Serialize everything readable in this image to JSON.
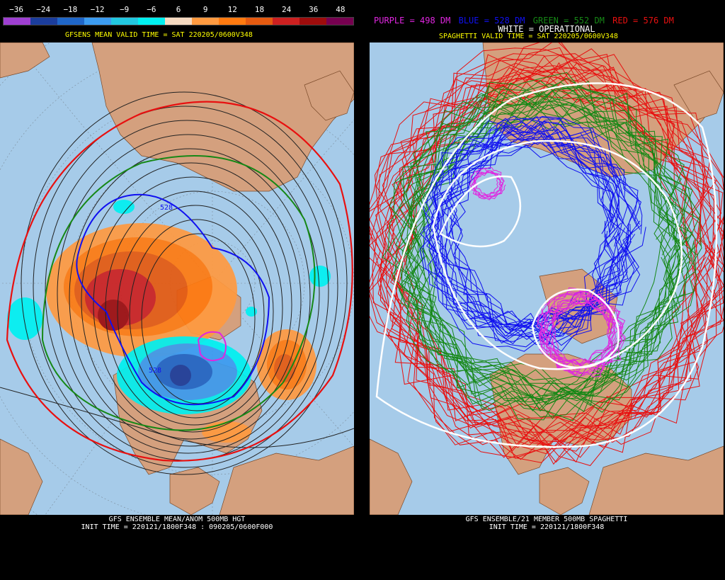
{
  "left": {
    "scale_labels": [
      "−36",
      "−24",
      "−18",
      "−12",
      "−9",
      "−6",
      "6",
      "9",
      "12",
      "18",
      "24",
      "36",
      "48"
    ],
    "scale_colors": [
      "#9e3fd1",
      "#1b3d9c",
      "#1f66c8",
      "#3b9bf0",
      "#22c7e0",
      "#00f0f0",
      "#f5d9c0",
      "#ff9a40",
      "#ff7a10",
      "#e55a10",
      "#cc2020",
      "#9e0c0c",
      "#760050"
    ],
    "valid_title": "GFSENS MEAN VALID TIME = SAT 220205/0600V348",
    "footer_line1": "GFS ENSEMBLE MEAN/ANOM 500MB HGT",
    "footer_line2": "INIT TIME = 220121/1800F348 : 090205/0600F000",
    "contour_labels": [
      "528",
      "528"
    ]
  },
  "right": {
    "legend": {
      "purple": "PURPLE = 498 DM",
      "blue": "BLUE = 528 DM",
      "green": "GREEN = 552 DM",
      "red": "RED = 576 DM",
      "white": "WHITE = OPERATIONAL"
    },
    "valid_title": "SPAGHETTI VALID TIME = SAT 220205/0600V348",
    "footer_line1": "GFS ENSEMBLE/21 MEMBER 500MB SPAGHETTI",
    "footer_line2": "INIT TIME = 220121/1800F348"
  },
  "colors": {
    "ocean": "#a6cbe9",
    "land": "#d4a07e",
    "purple": "#e026e0",
    "blue": "#1010f0",
    "green": "#168816",
    "red": "#e81010",
    "white": "#ffffff",
    "title": "#ffff00"
  }
}
